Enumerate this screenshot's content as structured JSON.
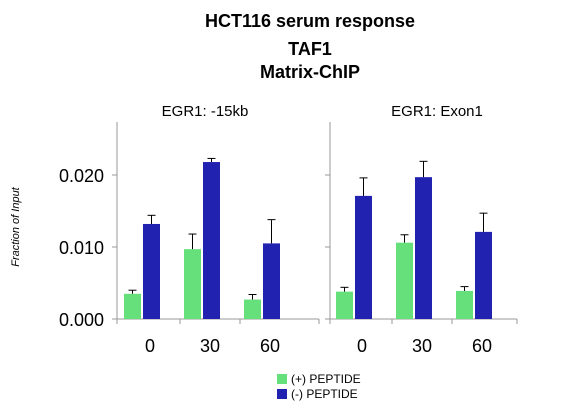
{
  "titles": {
    "line1": "HCT116 serum response",
    "line2": "TAF1",
    "line3": "Matrix-ChIP"
  },
  "chart_data": {
    "type": "bar",
    "ylabel": "Fraction of Input",
    "ylim": [
      0,
      0.025
    ],
    "yticks": [
      "0.000",
      "0.010",
      "0.020"
    ],
    "ytick_values": [
      0,
      0.01,
      0.02
    ],
    "categories": [
      "0",
      "30",
      "60"
    ],
    "legend": [
      {
        "label": "(+) PEPTIDE",
        "color": "#66e07a"
      },
      {
        "label": "(-) PEPTIDE",
        "color": "#2222b0"
      }
    ],
    "panels": [
      {
        "title": "EGR1: -15kb",
        "series": [
          {
            "values": [
              0.0035,
              0.0097,
              0.0027
            ],
            "errors": [
              0.0005,
              0.0021,
              0.0007
            ]
          },
          {
            "values": [
              0.0132,
              0.0218,
              0.0105
            ],
            "errors": [
              0.0012,
              0.0005,
              0.0033
            ]
          }
        ]
      },
      {
        "title": "EGR1: Exon1",
        "series": [
          {
            "values": [
              0.0038,
              0.0106,
              0.0039
            ],
            "errors": [
              0.0006,
              0.0011,
              0.0006
            ]
          },
          {
            "values": [
              0.0171,
              0.0197,
              0.0121
            ],
            "errors": [
              0.0025,
              0.0022,
              0.0026
            ]
          }
        ]
      }
    ]
  }
}
